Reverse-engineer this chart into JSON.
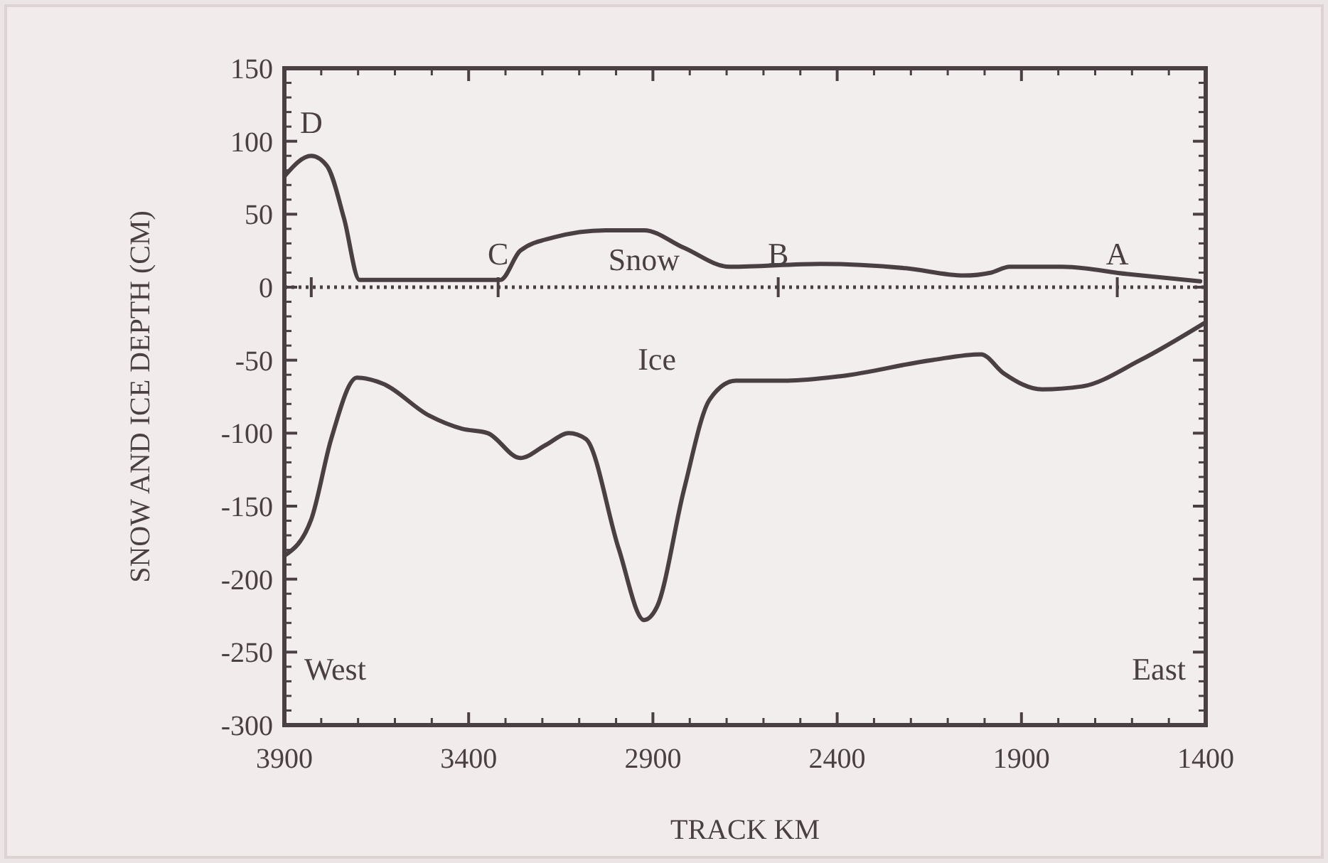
{
  "chart_data": {
    "type": "line",
    "xlabel": "TRACK KM",
    "ylabel": "SNOW AND ICE DEPTH (CM)",
    "xlim": [
      3900,
      1400
    ],
    "xticks": [
      3900,
      3400,
      2900,
      2400,
      1900,
      1400
    ],
    "ylim": [
      -300,
      150
    ],
    "yticks": [
      150,
      100,
      50,
      0,
      -50,
      -100,
      -150,
      -200,
      -250,
      -300
    ],
    "series": [
      {
        "name": "Snow",
        "color": "#4a4043",
        "x": [
          3900,
          3827,
          3784,
          3738,
          3696,
          3600,
          3450,
          3314,
          3260,
          3171,
          3028,
          2924,
          2816,
          2692,
          2445,
          2214,
          2056,
          1982,
          1932,
          1790,
          1612,
          1415
        ],
        "values": [
          76,
          90,
          83,
          47,
          5,
          5,
          5,
          5,
          25,
          34,
          39,
          39,
          27,
          14,
          16,
          13,
          8,
          10,
          14,
          14,
          9,
          4
        ]
      },
      {
        "name": "Ice",
        "color": "#4a4043",
        "x": [
          3900,
          3827,
          3773,
          3703,
          3634,
          3507,
          3418,
          3348,
          3260,
          3190,
          3128,
          3082,
          2993,
          2924,
          2889,
          2816,
          2746,
          2675,
          2534,
          2391,
          2145,
          2010,
          1948,
          1844,
          1736,
          1578,
          1400
        ],
        "values": [
          -184,
          -159,
          -104,
          -62,
          -66,
          -88,
          -97,
          -100,
          -117,
          -108,
          -100,
          -104,
          -179,
          -228,
          -219,
          -139,
          -77,
          -64,
          -64,
          -61,
          -50,
          -46,
          -59,
          -70,
          -68,
          -50,
          -24
        ]
      }
    ],
    "ref_lines": [
      {
        "axis": "y",
        "value": 0,
        "line_style": "dotted",
        "color": "#4a4043"
      }
    ],
    "annotations": [
      {
        "text": "D",
        "x": 3827,
        "y": 90
      },
      {
        "text": "C",
        "x": 3320,
        "y": 0
      },
      {
        "text": "B",
        "x": 2560,
        "y": 0
      },
      {
        "text": "A",
        "x": 1640,
        "y": 0
      },
      "West",
      "East"
    ],
    "marker": "none",
    "line_style": "solid",
    "grid": false
  }
}
